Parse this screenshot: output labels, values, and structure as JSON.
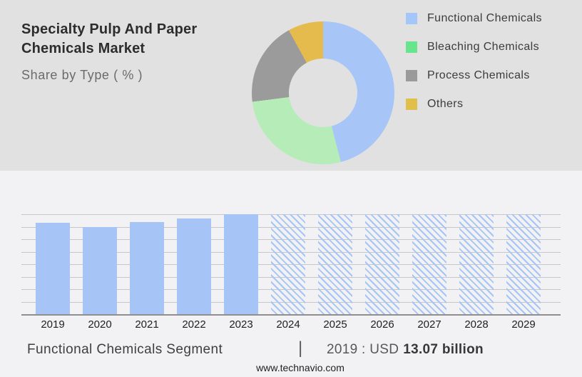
{
  "header": {
    "title_line1": "Specialty Pulp And Paper",
    "title_line2": "Chemicals Market",
    "subtitle": "Share by Type ( % )"
  },
  "colors": {
    "top_background": "#e1e1e1",
    "bottom_background": "#f2f2f4",
    "bar_solid": "#a6c4f5",
    "hatch_line": "#a6c4f5",
    "gridline": "#c7c7ca",
    "axis_line": "#8f8f8f",
    "title_text": "#2d2d2d",
    "subtitle_text": "#6b6b6b"
  },
  "chart_data": [
    {
      "type": "pie",
      "subtype": "donut",
      "title": "Share by Type ( % )",
      "legend_position": "right",
      "labels_on_slices": false,
      "segments": [
        {
          "label": "Functional Chemicals",
          "value_pct": 46,
          "slice_color": "#a7c5f6",
          "legend_color": "#a5c6fa"
        },
        {
          "label": "Bleaching Chemicals",
          "value_pct": 27,
          "slice_color": "#b5ecb8",
          "legend_color": "#67e58d"
        },
        {
          "label": "Process Chemicals",
          "value_pct": 19,
          "slice_color": "#9b9b9b",
          "legend_color": "#9a9a9a"
        },
        {
          "label": "Others",
          "value_pct": 8,
          "slice_color": "#e6bb4d",
          "legend_color": "#e0c04b"
        }
      ]
    },
    {
      "type": "bar",
      "title": "Functional Chemicals Segment",
      "categories": [
        "2019",
        "2020",
        "2021",
        "2022",
        "2023",
        "2024",
        "2025",
        "2026",
        "2027",
        "2028",
        "2029"
      ],
      "series": [
        {
          "name": "Functional Chemicals market size (USD billion)",
          "values_usd_billion_est": [
            13.07,
            12.5,
            13.11,
            13.65,
            14.26,
            null,
            null,
            null,
            null,
            null,
            null
          ]
        }
      ],
      "bar_heights_pct": [
        91.5,
        87.5,
        92,
        95.5,
        100,
        100,
        100,
        100,
        100,
        100,
        100
      ],
      "bar_styles": [
        "solid",
        "solid",
        "solid",
        "solid",
        "solid",
        "hatched",
        "hatched",
        "hatched",
        "hatched",
        "hatched",
        "hatched"
      ],
      "historical_years": [
        "2019",
        "2020",
        "2021",
        "2022",
        "2023"
      ],
      "forecast_years": [
        "2024",
        "2025",
        "2026",
        "2027",
        "2028",
        "2029"
      ],
      "labeled_value": {
        "year": "2019",
        "text": "USD 13.07 billion"
      },
      "y_axis_labels": [],
      "gridline_count": 9,
      "grid": true,
      "legend_position": "none"
    }
  ],
  "footer": {
    "segment_label": "Functional Chemicals Segment",
    "separator": "|",
    "value_prefix": "2019 : USD",
    "value_bold": "13.07 billion",
    "website": "www.technavio.com"
  }
}
